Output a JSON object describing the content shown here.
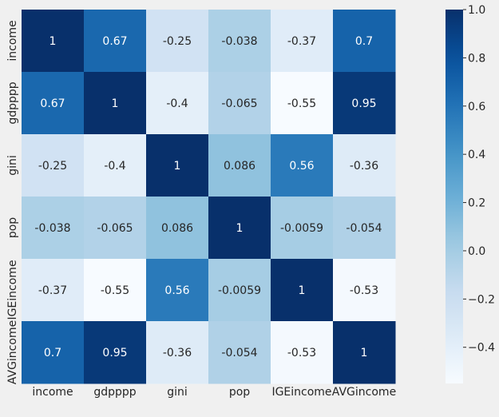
{
  "chart_data": {
    "type": "heatmap",
    "title": "",
    "xlabel": "",
    "ylabel": "",
    "variables": [
      "income",
      "gdpppp",
      "gini",
      "pop",
      "IGEincome",
      "AVGincome"
    ],
    "values": [
      [
        1,
        0.67,
        -0.25,
        -0.038,
        -0.37,
        0.7
      ],
      [
        0.67,
        1,
        -0.4,
        -0.065,
        -0.55,
        0.95
      ],
      [
        -0.25,
        -0.4,
        1,
        0.086,
        0.56,
        -0.36
      ],
      [
        -0.038,
        -0.065,
        0.086,
        1,
        -0.0059,
        -0.054
      ],
      [
        -0.37,
        -0.55,
        0.56,
        -0.0059,
        1,
        -0.53
      ],
      [
        0.7,
        0.95,
        -0.36,
        -0.054,
        -0.53,
        1
      ]
    ],
    "labels": [
      [
        "1",
        "0.67",
        "-0.25",
        "-0.038",
        "-0.37",
        "0.7"
      ],
      [
        "0.67",
        "1",
        "-0.4",
        "-0.065",
        "-0.55",
        "0.95"
      ],
      [
        "-0.25",
        "-0.4",
        "1",
        "0.086",
        "0.56",
        "-0.36"
      ],
      [
        "-0.038",
        "-0.065",
        "0.086",
        "1",
        "-0.0059",
        "-0.054"
      ],
      [
        "-0.37",
        "-0.55",
        "0.56",
        "-0.0059",
        "1",
        "-0.53"
      ],
      [
        "0.7",
        "0.95",
        "-0.36",
        "-0.054",
        "-0.53",
        "1"
      ]
    ],
    "colormap": "Blues",
    "vmin": -0.55,
    "vmax": 1,
    "colorbar": {
      "ticks": [
        1.0,
        0.8,
        0.6,
        0.4,
        0.2,
        0.0,
        -0.2,
        -0.4
      ],
      "tick_labels": [
        "1.0",
        "0.8",
        "0.6",
        "0.4",
        "0.2",
        "0.0",
        "−0.2",
        "−0.4"
      ]
    },
    "background": "#f0f0f0"
  }
}
